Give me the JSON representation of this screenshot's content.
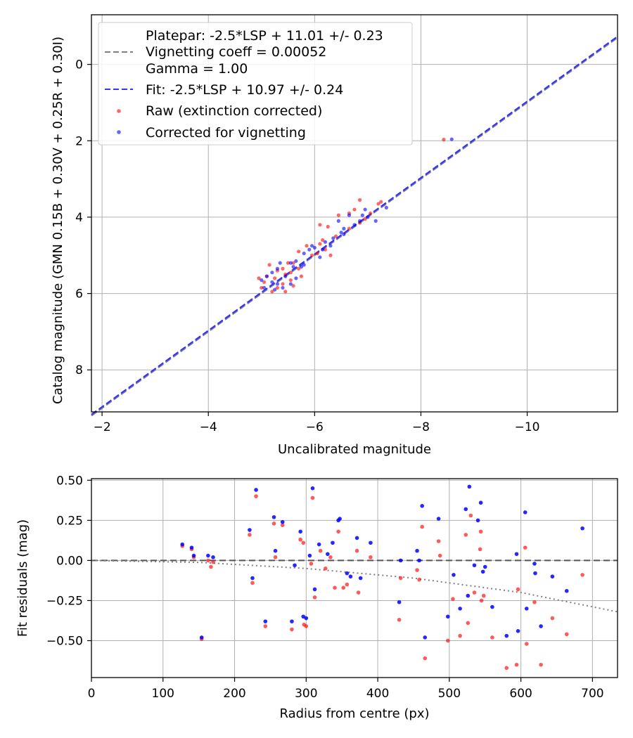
{
  "colors": {
    "raw": "#ff0000",
    "corrected": "#0000ff",
    "platepar_line": "#808080",
    "fit_line": "#3333ff",
    "grid": "#b0b0b0",
    "zero_line": "#555555",
    "vignetting_curve": "#808080"
  },
  "chart_data": [
    {
      "type": "scatter",
      "xlabel": "Uncalibrated magnitude",
      "ylabel": "Catalog magnitude (GMN 0.15B + 0.30V + 0.25R + 0.30I)",
      "xlim": [
        -1.8,
        -11.7
      ],
      "ylim": [
        9.1,
        -1.3
      ],
      "x_inverted": true,
      "y_inverted": true,
      "grid": true,
      "legend_position": "upper-left",
      "xticks": [
        -2,
        -4,
        -6,
        -8,
        -10
      ],
      "xtick_labels": [
        "−2",
        "−4",
        "−6",
        "−8",
        "−10"
      ],
      "yticks": [
        0,
        2,
        4,
        6,
        8
      ],
      "ytick_labels": [
        "0",
        "2",
        "4",
        "6",
        "8"
      ],
      "legend": {
        "platepar_text": "Platepar: -2.5*LSP + 11.01 +/- 0.23",
        "vignetting_text": "Vignetting coeff = 0.00052",
        "gamma_text": "Gamma = 1.00",
        "fit_text": "Fit: -2.5*LSP + 10.97 +/- 0.24",
        "raw_text": "Raw (extinction corrected)",
        "corrected_text": "Corrected for vignetting"
      },
      "lines": [
        {
          "name": "Platepar: -2.5*LSP + 11.01 +/- 0.23",
          "x": [
            -1.8,
            -11.7
          ],
          "y": [
            9.2,
            -0.7
          ],
          "style": "dashed"
        },
        {
          "name": "Fit: -2.5*LSP + 10.97 +/- 0.24",
          "x": [
            -1.8,
            -11.7
          ],
          "y": [
            9.17,
            -0.73
          ],
          "style": "dashed"
        }
      ],
      "series": [
        {
          "name": "Raw (extinction corrected)",
          "points": [
            [
              -8.43,
              1.97
            ],
            [
              -7.25,
              3.6
            ],
            [
              -6.85,
              3.55
            ],
            [
              -7.2,
              3.65
            ],
            [
              -7.05,
              3.9
            ],
            [
              -6.95,
              4.05
            ],
            [
              -6.75,
              3.8
            ],
            [
              -6.65,
              3.9
            ],
            [
              -6.85,
              4.15
            ],
            [
              -6.65,
              4.3
            ],
            [
              -6.45,
              3.95
            ],
            [
              -6.4,
              4.5
            ],
            [
              -6.25,
              4.25
            ],
            [
              -6.15,
              4.6
            ],
            [
              -6.1,
              4.7
            ],
            [
              -6.2,
              4.85
            ],
            [
              -6.05,
              4.95
            ],
            [
              -5.95,
              5.0
            ],
            [
              -5.85,
              4.75
            ],
            [
              -5.7,
              4.9
            ],
            [
              -6.1,
              4.2
            ],
            [
              -6.3,
              5.0
            ],
            [
              -5.6,
              5.2
            ],
            [
              -5.7,
              5.35
            ],
            [
              -5.5,
              5.2
            ],
            [
              -5.45,
              5.5
            ],
            [
              -5.55,
              5.65
            ],
            [
              -5.4,
              5.75
            ],
            [
              -5.3,
              5.4
            ],
            [
              -5.25,
              5.6
            ],
            [
              -5.15,
              5.25
            ],
            [
              -5.1,
              5.55
            ],
            [
              -5.05,
              5.7
            ],
            [
              -5.0,
              5.85
            ],
            [
              -5.3,
              5.85
            ],
            [
              -5.2,
              5.95
            ],
            [
              -5.4,
              5.35
            ],
            [
              -5.55,
              5.45
            ],
            [
              -4.95,
              5.6
            ],
            [
              -5.75,
              5.55
            ],
            [
              -5.45,
              5.95
            ],
            [
              -5.6,
              5.8
            ]
          ]
        },
        {
          "name": "Corrected for vignetting",
          "points": [
            [
              -8.58,
              1.96
            ],
            [
              -7.35,
              3.75
            ],
            [
              -6.95,
              3.8
            ],
            [
              -7.15,
              4.1
            ],
            [
              -7.0,
              4.0
            ],
            [
              -6.85,
              4.1
            ],
            [
              -6.65,
              3.95
            ],
            [
              -6.55,
              4.3
            ],
            [
              -6.75,
              4.2
            ],
            [
              -6.55,
              4.45
            ],
            [
              -6.35,
              4.55
            ],
            [
              -6.2,
              4.65
            ],
            [
              -6.15,
              4.85
            ],
            [
              -6.0,
              4.8
            ],
            [
              -6.1,
              5.05
            ],
            [
              -5.95,
              4.75
            ],
            [
              -5.8,
              4.95
            ],
            [
              -5.65,
              5.15
            ],
            [
              -5.75,
              5.3
            ],
            [
              -5.55,
              5.2
            ],
            [
              -5.35,
              5.2
            ],
            [
              -5.3,
              5.35
            ],
            [
              -5.2,
              5.45
            ],
            [
              -5.1,
              5.55
            ],
            [
              -5.2,
              5.7
            ],
            [
              -5.3,
              5.75
            ],
            [
              -5.05,
              5.85
            ],
            [
              -5.4,
              5.85
            ],
            [
              -5.55,
              5.75
            ],
            [
              -5.65,
              5.6
            ],
            [
              -5.45,
              5.55
            ],
            [
              -5.0,
              5.65
            ],
            [
              -5.25,
              5.9
            ],
            [
              -5.6,
              5.3
            ],
            [
              -5.8,
              5.25
            ],
            [
              -6.3,
              4.75
            ],
            [
              -6.5,
              4.4
            ],
            [
              -6.9,
              3.95
            ],
            [
              -6.45,
              4.1
            ],
            [
              -5.9,
              4.85
            ]
          ]
        }
      ]
    },
    {
      "type": "scatter",
      "xlabel": "Radius from centre (px)",
      "ylabel": "Fit residuals (mag)",
      "xlim": [
        0,
        735
      ],
      "ylim": [
        -0.73,
        0.51
      ],
      "grid": true,
      "xticks": [
        0,
        100,
        200,
        300,
        400,
        500,
        600,
        700
      ],
      "xtick_labels": [
        "0",
        "100",
        "200",
        "300",
        "400",
        "500",
        "600",
        "700"
      ],
      "yticks": [
        0.5,
        0.25,
        0.0,
        -0.25,
        -0.5
      ],
      "ytick_labels": [
        "0.50",
        "0.25",
        "0.00",
        "−0.25",
        "−0.50"
      ],
      "zero_line": 0.0,
      "vignetting_curve": {
        "x": [
          0,
          150,
          300,
          450,
          600,
          735
        ],
        "y": [
          0.0,
          -0.012,
          -0.05,
          -0.11,
          -0.2,
          -0.32
        ],
        "style": "dotted"
      },
      "series": [
        {
          "name": "Raw (extinction corrected)",
          "points": [
            [
              127,
              0.09
            ],
            [
              140,
              0.07
            ],
            [
              143,
              0.02
            ],
            [
              154,
              -0.49
            ],
            [
              163,
              0.0
            ],
            [
              167,
              -0.04
            ],
            [
              170,
              -0.01
            ],
            [
              221,
              0.16
            ],
            [
              225,
              -0.14
            ],
            [
              230,
              0.4
            ],
            [
              243,
              -0.41
            ],
            [
              255,
              0.23
            ],
            [
              257,
              0.02
            ],
            [
              267,
              0.22
            ],
            [
              280,
              -0.43
            ],
            [
              292,
              0.13
            ],
            [
              296,
              0.11
            ],
            [
              297,
              -0.4
            ],
            [
              300,
              -0.41
            ],
            [
              307,
              -0.02
            ],
            [
              309,
              0.39
            ],
            [
              312,
              -0.23
            ],
            [
              320,
              0.06
            ],
            [
              327,
              -0.05
            ],
            [
              334,
              0.02
            ],
            [
              340,
              -0.17
            ],
            [
              345,
              0.18
            ],
            [
              352,
              -0.17
            ],
            [
              357,
              -0.15
            ],
            [
              371,
              0.06
            ],
            [
              373,
              -0.2
            ],
            [
              390,
              0.02
            ],
            [
              430,
              -0.37
            ],
            [
              432,
              -0.11
            ],
            [
              455,
              -0.06
            ],
            [
              458,
              -0.12
            ],
            [
              462,
              0.21
            ],
            [
              466,
              -0.61
            ],
            [
              485,
              0.12
            ],
            [
              487,
              0.03
            ],
            [
              498,
              -0.5
            ],
            [
              505,
              -0.24
            ],
            [
              515,
              -0.47
            ],
            [
              523,
              0.16
            ],
            [
              526,
              -0.39
            ],
            [
              530,
              0.28
            ],
            [
              535,
              -0.2
            ],
            [
              543,
              0.07
            ],
            [
              544,
              0.18
            ],
            [
              545,
              -0.25
            ],
            [
              548,
              -0.22
            ],
            [
              560,
              -0.48
            ],
            [
              580,
              -0.67
            ],
            [
              594,
              -0.65
            ],
            [
              596,
              -0.18
            ],
            [
              606,
              0.08
            ],
            [
              608,
              -0.52
            ],
            [
              619,
              -0.26
            ],
            [
              628,
              -0.65
            ],
            [
              644,
              -0.36
            ],
            [
              664,
              -0.46
            ],
            [
              686,
              -0.09
            ]
          ]
        },
        {
          "name": "Corrected for vignetting",
          "points": [
            [
              127,
              0.1
            ],
            [
              140,
              0.08
            ],
            [
              143,
              0.03
            ],
            [
              154,
              -0.48
            ],
            [
              163,
              0.03
            ],
            [
              170,
              0.02
            ],
            [
              221,
              0.19
            ],
            [
              225,
              -0.11
            ],
            [
              230,
              0.44
            ],
            [
              243,
              -0.38
            ],
            [
              255,
              0.27
            ],
            [
              257,
              0.06
            ],
            [
              267,
              0.24
            ],
            [
              280,
              -0.38
            ],
            [
              284,
              -0.03
            ],
            [
              292,
              0.18
            ],
            [
              296,
              -0.35
            ],
            [
              300,
              -0.36
            ],
            [
              305,
              0.03
            ],
            [
              309,
              0.45
            ],
            [
              312,
              -0.18
            ],
            [
              318,
              0.1
            ],
            [
              330,
              0.04
            ],
            [
              337,
              0.11
            ],
            [
              345,
              0.25
            ],
            [
              347,
              0.26
            ],
            [
              357,
              -0.08
            ],
            [
              362,
              -0.1
            ],
            [
              371,
              0.14
            ],
            [
              376,
              -0.11
            ],
            [
              390,
              0.11
            ],
            [
              430,
              -0.26
            ],
            [
              432,
              0.0
            ],
            [
              455,
              0.06
            ],
            [
              458,
              0.0
            ],
            [
              462,
              0.34
            ],
            [
              466,
              -0.48
            ],
            [
              485,
              0.26
            ],
            [
              498,
              -0.35
            ],
            [
              506,
              -0.09
            ],
            [
              515,
              -0.3
            ],
            [
              523,
              0.32
            ],
            [
              526,
              -0.22
            ],
            [
              528,
              0.46
            ],
            [
              535,
              -0.03
            ],
            [
              540,
              0.25
            ],
            [
              544,
              0.36
            ],
            [
              547,
              -0.07
            ],
            [
              550,
              -0.04
            ],
            [
              560,
              -0.29
            ],
            [
              580,
              -0.47
            ],
            [
              594,
              0.04
            ],
            [
              596,
              -0.44
            ],
            [
              606,
              0.3
            ],
            [
              608,
              -0.3
            ],
            [
              619,
              -0.02
            ],
            [
              620,
              -0.08
            ],
            [
              628,
              -0.41
            ],
            [
              644,
              -0.1
            ],
            [
              664,
              -0.19
            ],
            [
              686,
              0.2
            ]
          ]
        }
      ]
    }
  ]
}
